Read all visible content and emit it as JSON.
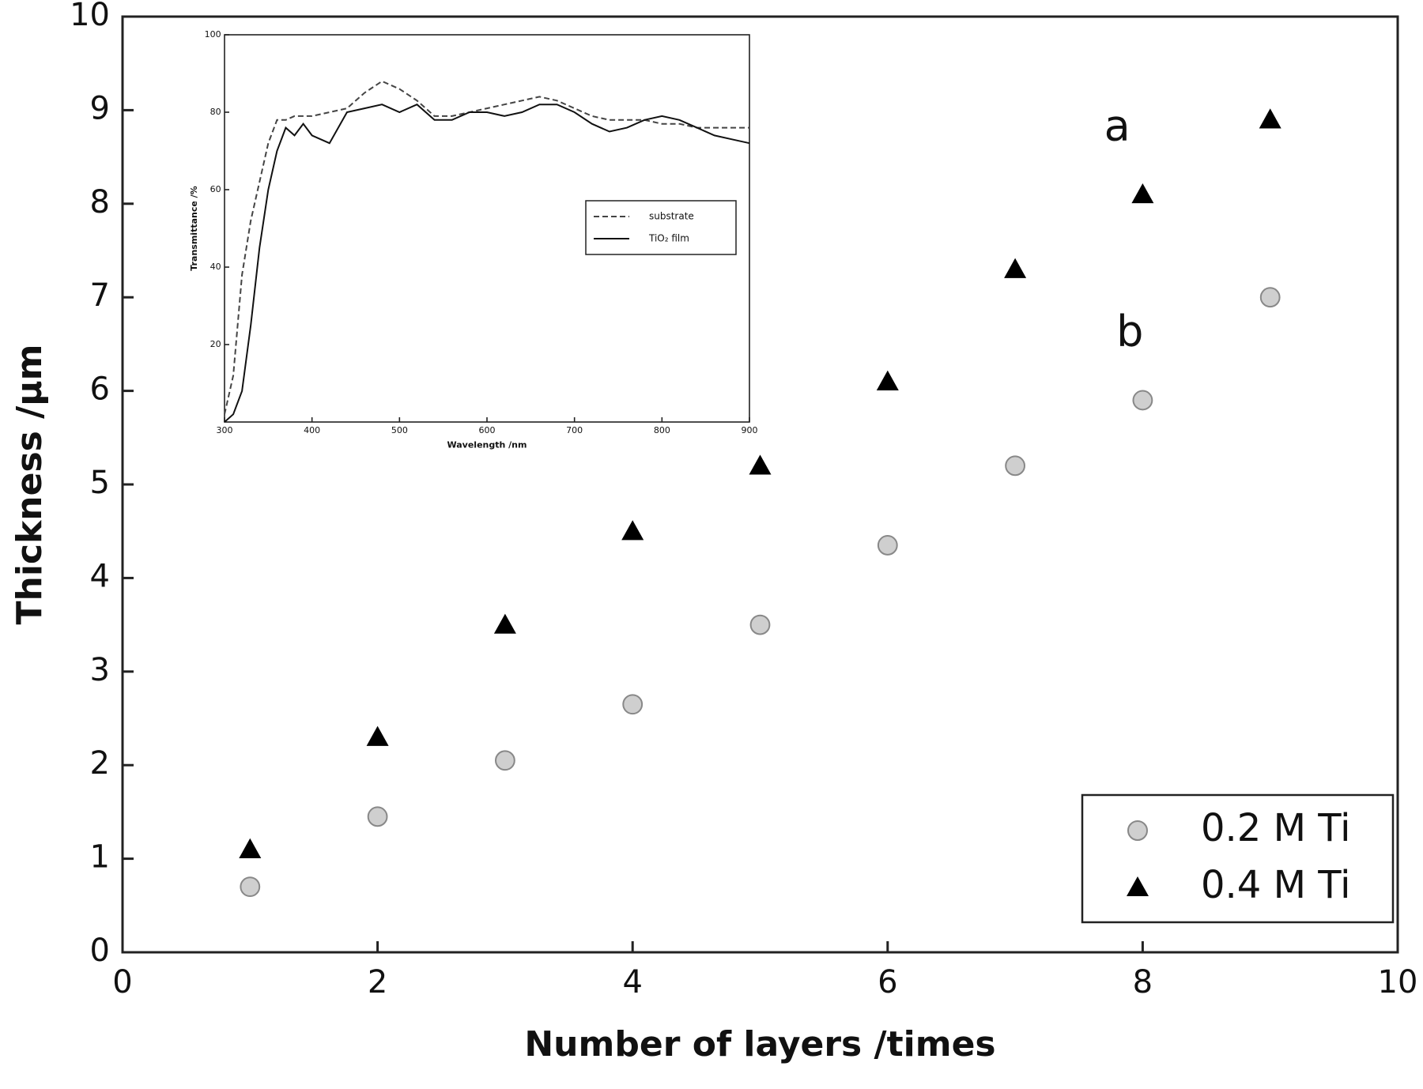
{
  "chart_data": [
    {
      "type": "scatter",
      "x_label": "Number of layers /times",
      "y_label": "Thickness /µm",
      "x": [
        1,
        2,
        3,
        4,
        5,
        6,
        7,
        8,
        9
      ],
      "series": [
        {
          "name": "0.2 M Ti",
          "color": "#888888",
          "marker": "circle",
          "values": [
            0.7,
            1.45,
            2.05,
            2.65,
            3.5,
            4.35,
            5.2,
            5.9,
            7.0
          ]
        },
        {
          "name": "0.4 M Ti",
          "color": "#000000",
          "marker": "triangle",
          "values": [
            1.1,
            2.3,
            3.5,
            4.5,
            5.2,
            6.1,
            7.3,
            8.1,
            8.9
          ]
        }
      ],
      "annotations": [
        "a",
        "b"
      ],
      "xlim": [
        0,
        10
      ],
      "xticks": [
        0,
        2,
        4,
        6,
        8,
        10
      ],
      "ylim": [
        0,
        10
      ],
      "yticks": [
        0,
        1,
        2,
        3,
        4,
        5,
        6,
        7,
        8,
        9,
        10
      ],
      "legend": "lower right"
    },
    {
      "type": "line",
      "x_label": "Wavelength /nm",
      "y_label": "Transmittance /%",
      "x": [
        300,
        310,
        320,
        330,
        340,
        350,
        360,
        370,
        380,
        390,
        400,
        420,
        440,
        460,
        480,
        500,
        520,
        540,
        560,
        580,
        600,
        620,
        640,
        660,
        680,
        700,
        720,
        740,
        760,
        780,
        800,
        820,
        840,
        860,
        880,
        900
      ],
      "series": [
        {
          "name": "substrate",
          "color": "#444444",
          "dash": true,
          "values": [
            2,
            12,
            38,
            52,
            62,
            72,
            78,
            78,
            79,
            79,
            79,
            80,
            81,
            85,
            88,
            86,
            83,
            79,
            79,
            80,
            81,
            82,
            83,
            84,
            83,
            81,
            79,
            78,
            78,
            78,
            77,
            77,
            76,
            76,
            76,
            76
          ]
        },
        {
          "name": "TiO₂ film",
          "color": "#111111",
          "dash": false,
          "values": [
            0,
            2,
            8,
            25,
            45,
            60,
            70,
            76,
            74,
            77,
            74,
            72,
            80,
            81,
            82,
            80,
            82,
            78,
            78,
            80,
            80,
            79,
            80,
            82,
            82,
            80,
            77,
            75,
            76,
            78,
            79,
            78,
            76,
            74,
            73,
            72
          ]
        }
      ],
      "xlim": [
        300,
        900
      ],
      "xticks": [
        300,
        400,
        500,
        600,
        700,
        800,
        900
      ],
      "ylim": [
        0,
        100
      ],
      "yticks": [
        20,
        40,
        60,
        80,
        100
      ],
      "legend": "center right"
    }
  ]
}
